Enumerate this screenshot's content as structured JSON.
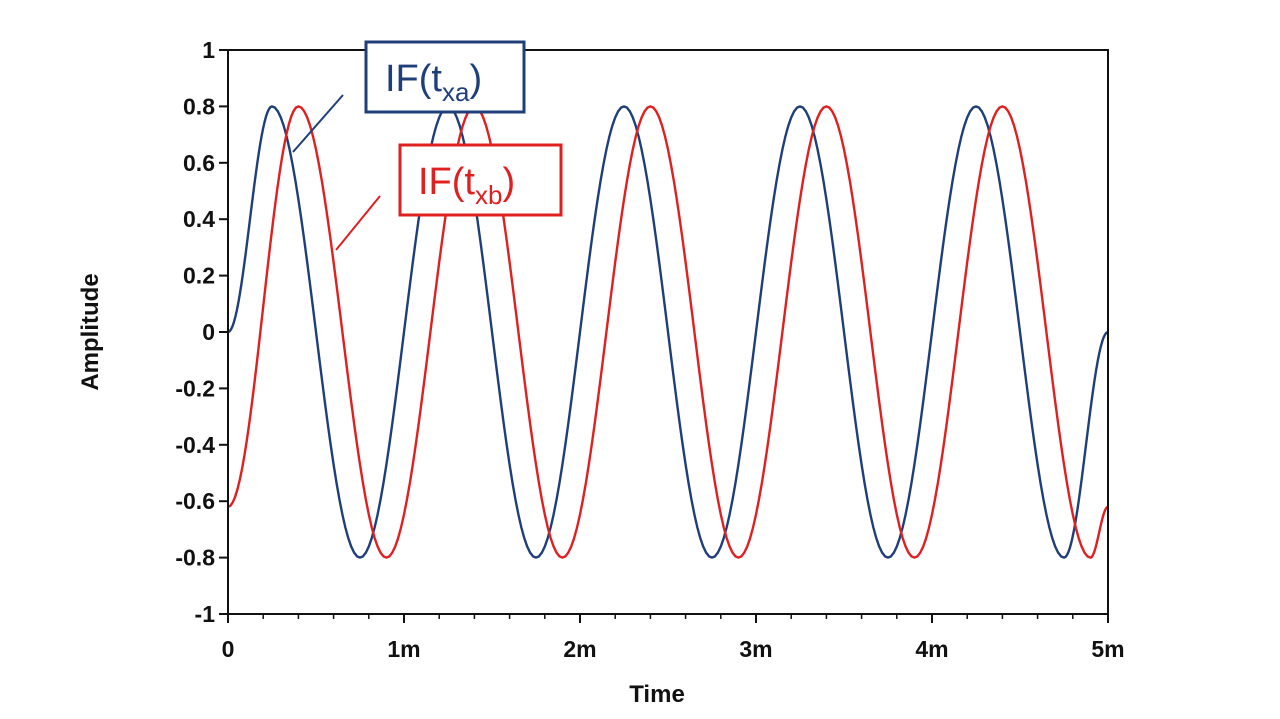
{
  "chart_data": {
    "type": "line",
    "xlabel": "Time",
    "ylabel": "Amplitude",
    "xlim": [
      0,
      0.005
    ],
    "ylim": [
      -1,
      1
    ],
    "x_ticks": [
      {
        "value": 0,
        "label": "0"
      },
      {
        "value": 0.001,
        "label": "1m"
      },
      {
        "value": 0.002,
        "label": "2m"
      },
      {
        "value": 0.003,
        "label": "3m"
      },
      {
        "value": 0.004,
        "label": "4m"
      },
      {
        "value": 0.005,
        "label": "5m"
      }
    ],
    "y_ticks": [
      {
        "value": 1,
        "label": "1"
      },
      {
        "value": 0.8,
        "label": "0.8"
      },
      {
        "value": 0.6,
        "label": "0.6"
      },
      {
        "value": 0.4,
        "label": "0.4"
      },
      {
        "value": 0.2,
        "label": "0.2"
      },
      {
        "value": 0,
        "label": "0"
      },
      {
        "value": -0.2,
        "label": "-0.2"
      },
      {
        "value": -0.4,
        "label": "-0.4"
      },
      {
        "value": -0.6,
        "label": "-0.6"
      },
      {
        "value": -0.8,
        "label": "-0.8"
      },
      {
        "value": -1,
        "label": "-1"
      }
    ],
    "grid": false,
    "series": [
      {
        "name": "IF(t",
        "name_subscript": "xa",
        "name_suffix": ")",
        "color": "#1f3f7a",
        "x": [
          0,
          0.00025,
          0.00075,
          0.00125,
          0.00175,
          0.00225,
          0.00275,
          0.00325,
          0.00375,
          0.00425,
          0.00475,
          0.005
        ],
        "y": [
          0,
          0.8,
          -0.8,
          0.8,
          -0.8,
          0.8,
          -0.8,
          0.8,
          -0.8,
          0.8,
          -0.8,
          0
        ]
      },
      {
        "name": "IF(t",
        "name_subscript": "xb",
        "name_suffix": ")",
        "color": "#e02020",
        "x": [
          0,
          0.0004,
          0.0009,
          0.0014,
          0.0019,
          0.0024,
          0.0029,
          0.0034,
          0.0039,
          0.0044,
          0.0049,
          0.005
        ],
        "y": [
          -0.62,
          0.8,
          -0.8,
          0.8,
          -0.8,
          0.8,
          -0.8,
          0.8,
          -0.8,
          0.8,
          -0.8,
          -0.62
        ]
      }
    ]
  }
}
